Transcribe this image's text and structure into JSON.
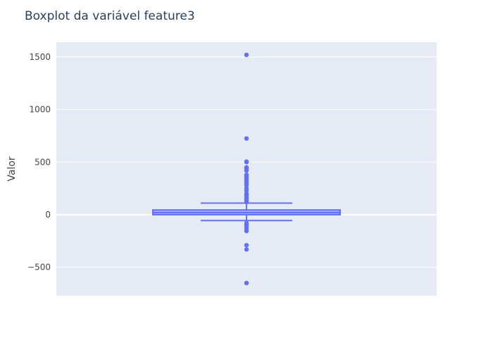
{
  "chart_data": {
    "type": "boxplot",
    "title": "Boxplot da variável feature3",
    "ylabel": "Valor",
    "xlabel": "",
    "ylim": [
      -770,
      1640
    ],
    "yticks": [
      -500,
      0,
      500,
      1000,
      1500
    ],
    "ytick_labels": [
      "−500",
      "0",
      "500",
      "1000",
      "1500"
    ],
    "grid": true,
    "box": {
      "q1": 0,
      "median": 20,
      "q3": 45,
      "whisker_low": -55,
      "whisker_high": 110
    },
    "outliers": [
      1520,
      725,
      505,
      500,
      450,
      440,
      430,
      420,
      380,
      370,
      360,
      340,
      320,
      300,
      280,
      250,
      230,
      200,
      190,
      175,
      160,
      145,
      130,
      120,
      -80,
      -95,
      -110,
      -130,
      -155,
      -290,
      -330,
      -650
    ],
    "colors": {
      "box": "#636efa",
      "plot_bg": "#e5ecf6",
      "grid": "#ffffff",
      "text": "#2a3f5f",
      "tick_text": "#444444"
    }
  }
}
